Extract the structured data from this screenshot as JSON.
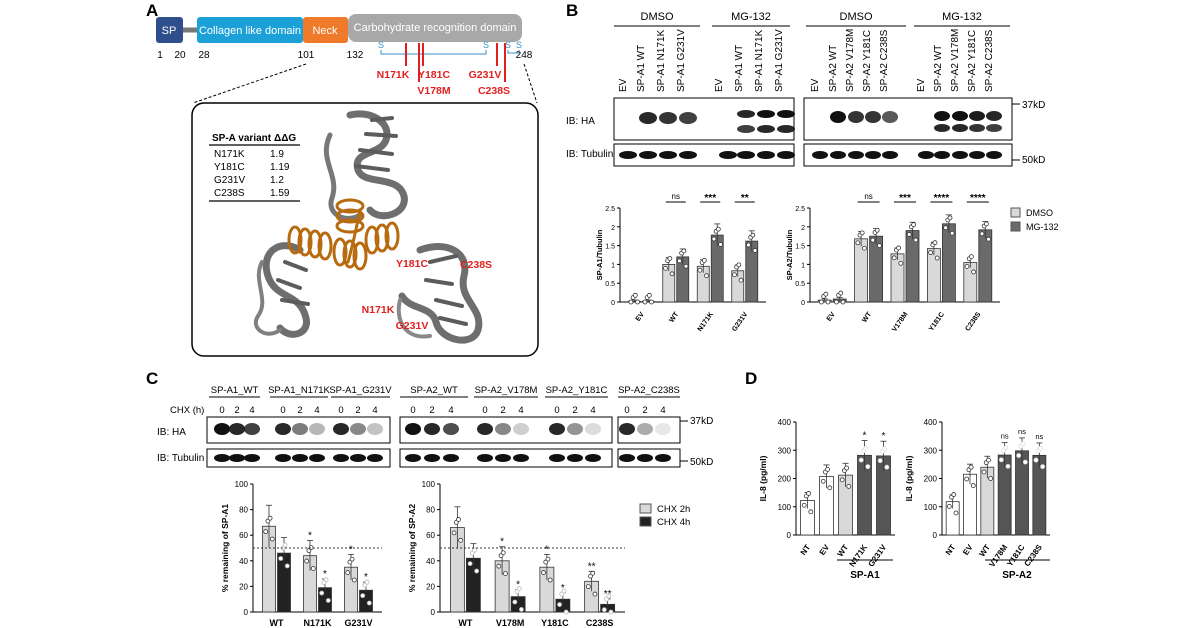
{
  "panels": {
    "A": "A",
    "B": "B",
    "C": "C",
    "D": "D"
  },
  "domains": {
    "sp": "SP",
    "collagen": "Collagen like domain",
    "neck": "Neck",
    "crd": "Carbohydrate recognition domain",
    "pos1": "1",
    "pos20": "20",
    "pos28": "28",
    "pos101": "101",
    "pos132": "132",
    "pos248": "248",
    "s": "S"
  },
  "mutations": [
    "N171K",
    "Y181C",
    "G231V",
    "V178M",
    "C238S"
  ],
  "ddg_table": {
    "header_variant": "SP-A variant",
    "header_ddg": "ΔΔG",
    "rows": [
      [
        "N171K",
        "1.9"
      ],
      [
        "Y181C",
        "1.19"
      ],
      [
        "G231V",
        "1.2"
      ],
      [
        "C238S",
        "1.59"
      ]
    ]
  },
  "structure_labels": {
    "y181c": "Y181C",
    "c238s": "C238S",
    "n171k": "N171K",
    "g231v": "G231V"
  },
  "blot_b": {
    "groups": [
      "DMSO",
      "MG-132",
      "DMSO",
      "MG-132"
    ],
    "lanes_a1": [
      "EV",
      "SP-A1 WT",
      "SP-A1 N171K",
      "SP-A1 G231V"
    ],
    "lanes_a2": [
      "EV",
      "SP-A2 WT",
      "SP-A2 V178M",
      "SP-A2 Y181C",
      "SP-A2 C238S"
    ],
    "ib_ha": "IB: HA",
    "ib_tubulin": "IB: Tubulin",
    "mw37": "37kD",
    "mw50": "50kD"
  },
  "sig_b1": [
    "ns",
    "***",
    "**"
  ],
  "sig_b2": [
    "ns",
    "***",
    "****",
    "****"
  ],
  "legend_b": [
    "DMSO",
    "MG-132"
  ],
  "blot_c": {
    "groups": [
      "SP-A1_WT",
      "SP-A1_N171K",
      "SP-A1_G231V",
      "SP-A2_WT",
      "SP-A2_V178M",
      "SP-A2_Y181C",
      "SP-A2_C238S"
    ],
    "chx_label": "CHX (h)",
    "times": [
      "0",
      "2",
      "4"
    ],
    "ib_ha": "IB: HA",
    "ib_tubulin": "IB: Tubulin",
    "mw37": "37kD",
    "mw50": "50kD"
  },
  "legend_c": [
    "CHX 2h",
    "CHX 4h"
  ],
  "star": "*",
  "dstar": "**",
  "ns": "ns",
  "chart_data": [
    {
      "id": "B1",
      "type": "bar",
      "ylabel": "SP-A1/Tubulin",
      "ylim": [
        0,
        2.5
      ],
      "yticks": [
        0,
        0.5,
        1,
        1.5,
        2,
        2.5
      ],
      "categories": [
        "EV",
        "WT",
        "N171K",
        "G231V"
      ],
      "series": [
        {
          "name": "DMSO",
          "values": [
            0.02,
            1.0,
            0.95,
            0.83
          ]
        },
        {
          "name": "MG-132",
          "values": [
            0.02,
            1.2,
            1.78,
            1.62
          ]
        }
      ]
    },
    {
      "id": "B2",
      "type": "bar",
      "ylabel": "SP-A2/Tubulin",
      "ylim": [
        0,
        2.5
      ],
      "yticks": [
        0,
        0.5,
        1,
        1.5,
        2,
        2.5
      ],
      "categories": [
        "EV",
        "WT",
        "V178M",
        "Y181C",
        "C238S"
      ],
      "series": [
        {
          "name": "DMSO",
          "values": [
            0.05,
            1.68,
            1.28,
            1.42,
            1.05
          ]
        },
        {
          "name": "MG-132",
          "values": [
            0.08,
            1.75,
            1.9,
            2.08,
            1.92
          ]
        }
      ]
    },
    {
      "id": "C1",
      "type": "bar",
      "ylabel": "% remaining of SP-A1",
      "ylim": [
        0,
        100
      ],
      "yticks": [
        0,
        20,
        40,
        60,
        80,
        100
      ],
      "categories": [
        "WT",
        "N171K",
        "G231V"
      ],
      "series": [
        {
          "name": "CHX 2h",
          "values": [
            67,
            44,
            35
          ]
        },
        {
          "name": "CHX 4h",
          "values": [
            46,
            19,
            17
          ]
        }
      ]
    },
    {
      "id": "C2",
      "type": "bar",
      "ylabel": "% remaining of SP-A2",
      "ylim": [
        0,
        100
      ],
      "yticks": [
        0,
        20,
        40,
        60,
        80,
        100
      ],
      "categories": [
        "WT",
        "V178M",
        "Y181C",
        "C238S"
      ],
      "series": [
        {
          "name": "CHX 2h",
          "values": [
            66,
            40,
            35,
            24
          ]
        },
        {
          "name": "CHX 4h",
          "values": [
            42,
            12,
            10,
            6
          ]
        }
      ]
    },
    {
      "id": "D1",
      "type": "bar",
      "ylabel": "IL-8 (pg/ml)",
      "ylim": [
        0,
        400
      ],
      "yticks": [
        0,
        100,
        200,
        300,
        400
      ],
      "categories": [
        "NT",
        "EV",
        "WT",
        "N171K",
        "G231V"
      ],
      "values": [
        122,
        207,
        212,
        282,
        280
      ],
      "group_label": "SP-A1"
    },
    {
      "id": "D2",
      "type": "bar",
      "ylabel": "IL-8 (pg/ml)",
      "ylim": [
        0,
        400
      ],
      "yticks": [
        0,
        100,
        200,
        300,
        400
      ],
      "categories": [
        "NT",
        "EV",
        "WT",
        "V178M",
        "Y181C",
        "C238S"
      ],
      "values": [
        118,
        215,
        240,
        283,
        298,
        282
      ],
      "group_label": "SP-A2"
    }
  ]
}
